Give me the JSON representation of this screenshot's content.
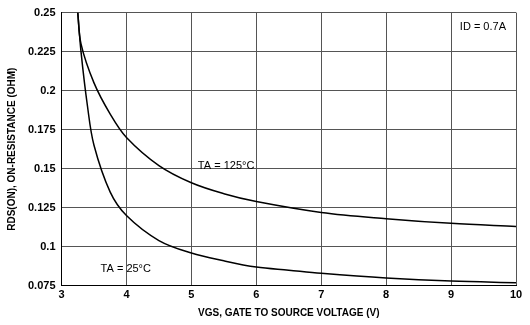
{
  "chart_data": {
    "type": "line",
    "annotations": [
      "ID = 0.7A"
    ],
    "x_label": "VGS, GATE TO SOURCE VOLTAGE (V)",
    "y_label": "RDS(ON), ON-RESISTANCE (OHM)",
    "xlim": [
      3,
      10
    ],
    "xticks": [
      3,
      4,
      5,
      6,
      7,
      8,
      9,
      10
    ],
    "ylim": [
      0.075,
      0.25
    ],
    "yticks": [
      0.075,
      0.1,
      0.125,
      0.15,
      0.175,
      0.2,
      0.225,
      0.25
    ],
    "grid": true,
    "series": [
      {
        "name": "TA = 125°C",
        "color": "#000000",
        "x": [
          3.25,
          3.3,
          3.5,
          3.75,
          4,
          4.5,
          5,
          5.5,
          6,
          7,
          8,
          9,
          10
        ],
        "values": [
          0.25,
          0.23,
          0.205,
          0.185,
          0.17,
          0.152,
          0.141,
          0.134,
          0.129,
          0.122,
          0.118,
          0.115,
          0.113
        ]
      },
      {
        "name": "TA = 25°C",
        "color": "#000000",
        "x": [
          3.25,
          3.3,
          3.4,
          3.5,
          3.75,
          4,
          4.5,
          5,
          5.5,
          6,
          6.5,
          7,
          8,
          9,
          10
        ],
        "values": [
          0.25,
          0.225,
          0.19,
          0.165,
          0.135,
          0.12,
          0.104,
          0.096,
          0.091,
          0.087,
          0.085,
          0.083,
          0.08,
          0.078,
          0.077
        ]
      }
    ]
  }
}
